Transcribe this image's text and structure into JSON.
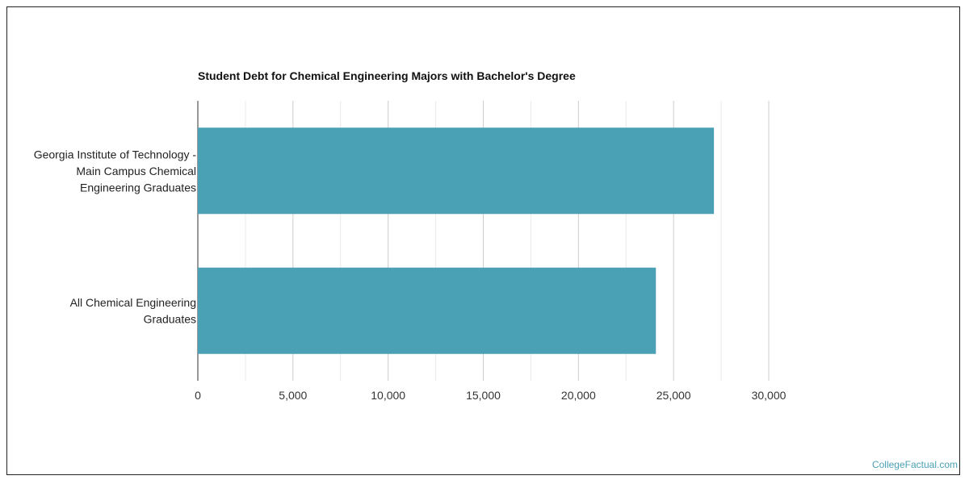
{
  "chart_data": {
    "type": "bar",
    "orientation": "horizontal",
    "title": "Student Debt for Chemical Engineering Majors with Bachelor's Degree",
    "categories": [
      [
        "Georgia Institute of Technology -",
        "Main Campus Chemical",
        "Engineering Graduates"
      ],
      [
        "All Chemical Engineering",
        "Graduates"
      ]
    ],
    "values": [
      27120,
      24070
    ],
    "xlim": [
      0,
      30000
    ],
    "xticks": [
      0,
      5000,
      10000,
      15000,
      20000,
      25000,
      30000
    ],
    "xtick_labels": [
      "0",
      "5,000",
      "10,000",
      "15,000",
      "20,000",
      "25,000",
      "30,000"
    ],
    "grid": true,
    "bar_color": "#4aa0b5"
  },
  "credit": "CollegeFactual.com"
}
